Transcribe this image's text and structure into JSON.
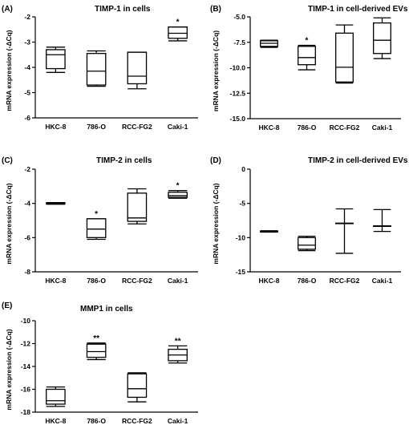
{
  "chart_data": [
    {
      "panel": "(A)",
      "type": "box",
      "title": "TIMP-1 in cells",
      "ylabel": "mRNA expression (-ΔCq)",
      "xlabel": "",
      "categories": [
        "HKC-8",
        "786-O",
        "RCC-FG2",
        "Caki-1"
      ],
      "ylim": [
        -6,
        -2
      ],
      "yticks": [
        -6,
        -5,
        -4,
        -3,
        -2
      ],
      "ytick_labels": [
        "-6",
        "-5",
        "-4",
        "-3",
        "-2"
      ],
      "boxes": [
        {
          "min": -4.2,
          "q1": -4.05,
          "median": -3.5,
          "q3": -3.3,
          "max": -3.2
        },
        {
          "min": -4.75,
          "q1": -4.7,
          "median": -4.15,
          "q3": -3.45,
          "max": -3.35
        },
        {
          "min": -4.85,
          "q1": -4.65,
          "median": -4.35,
          "q3": -3.4,
          "max": -3.4
        },
        {
          "min": -2.95,
          "q1": -2.85,
          "median": -2.65,
          "q3": -2.4,
          "max": -2.4
        }
      ],
      "significance": [
        "",
        "",
        "",
        "*"
      ]
    },
    {
      "panel": "(B)",
      "type": "box",
      "title": "TIMP-1 in cell-derived EVs",
      "ylabel": "mRNA expression (-ΔCq)",
      "xlabel": "",
      "categories": [
        "HKC-8",
        "786-O",
        "RCC-FG2",
        "Caki-1"
      ],
      "ylim": [
        -15,
        -5
      ],
      "yticks": [
        -15,
        -12.5,
        -10,
        -7.5,
        -5
      ],
      "ytick_labels": [
        "-15.0",
        "-12.5",
        "-10.0",
        "-7.5",
        "-5.0"
      ],
      "boxes": [
        {
          "min": -8.0,
          "q1": -7.9,
          "median": -7.6,
          "q3": -7.35,
          "max": -7.3
        },
        {
          "min": -10.2,
          "q1": -9.7,
          "median": -9.0,
          "q3": -7.9,
          "max": -7.8
        },
        {
          "min": -11.5,
          "q1": -11.4,
          "median": -9.95,
          "q3": -6.6,
          "max": -5.8
        },
        {
          "min": -9.1,
          "q1": -8.6,
          "median": -7.3,
          "q3": -5.6,
          "max": -5.1
        }
      ],
      "significance": [
        "",
        "*",
        "",
        ""
      ]
    },
    {
      "panel": "(C)",
      "type": "box",
      "title": "TIMP-2 in cells",
      "ylabel": "mRNA expression (-ΔCq)",
      "xlabel": "",
      "categories": [
        "HKC-8",
        "786-O",
        "RCC-FG2",
        "Caki-1"
      ],
      "ylim": [
        -8,
        -2
      ],
      "yticks": [
        -8,
        -6,
        -4,
        -2
      ],
      "ytick_labels": [
        "-8",
        "-6",
        "-4",
        "-2"
      ],
      "boxes": [
        {
          "min": -4.05,
          "q1": -4.02,
          "median": -4.0,
          "q3": -3.97,
          "max": -3.95
        },
        {
          "min": -6.1,
          "q1": -6.0,
          "median": -5.5,
          "q3": -4.9,
          "max": -4.9
        },
        {
          "min": -5.2,
          "q1": -5.05,
          "median": -4.85,
          "q3": -3.4,
          "max": -3.15
        },
        {
          "min": -3.7,
          "q1": -3.65,
          "median": -3.55,
          "q3": -3.35,
          "max": -3.25
        }
      ],
      "significance": [
        "",
        "*",
        "",
        "*"
      ]
    },
    {
      "panel": "(D)",
      "type": "box",
      "title": "TIMP-2 in cell-derived EVs",
      "ylabel": "mRNA expression (-ΔCq)",
      "xlabel": "",
      "categories": [
        "HKC-8",
        "786-O",
        "RCC-FG2",
        "Caki-1"
      ],
      "ylim": [
        -15,
        0
      ],
      "yticks": [
        -15,
        -10,
        -5,
        0
      ],
      "ytick_labels": [
        "-15",
        "-10",
        "-5",
        "0"
      ],
      "boxes": [
        {
          "min": -9.2,
          "q1": -9.15,
          "median": -9.1,
          "q3": -9.05,
          "max": -9.0
        },
        {
          "min": -11.9,
          "q1": -11.7,
          "median": -11.1,
          "q3": -10.0,
          "max": -9.8
        },
        {
          "min": -12.3,
          "q1": -7.9,
          "median": -7.9,
          "q3": -7.9,
          "max": -5.8
        },
        {
          "min": -9.1,
          "q1": -8.3,
          "median": -8.3,
          "q3": -8.3,
          "max": -5.9
        }
      ],
      "significance": [
        "",
        "",
        "",
        ""
      ]
    },
    {
      "panel": "(E)",
      "type": "box",
      "title": "MMP1 in cells",
      "ylabel": "mRNA expression (-ΔCq)",
      "xlabel": "",
      "categories": [
        "HKC-8",
        "786-O",
        "RCC-FG2",
        "Caki-1"
      ],
      "ylim": [
        -18,
        -10
      ],
      "yticks": [
        -18,
        -16,
        -14,
        -12,
        -10
      ],
      "ytick_labels": [
        "-18",
        "-16",
        "-14",
        "-12",
        "-10"
      ],
      "boxes": [
        {
          "min": -17.5,
          "q1": -17.3,
          "median": -17.0,
          "q3": -16.0,
          "max": -15.8
        },
        {
          "min": -13.4,
          "q1": -13.2,
          "median": -12.7,
          "q3": -12.05,
          "max": -11.95
        },
        {
          "min": -17.1,
          "q1": -16.7,
          "median": -15.95,
          "q3": -14.65,
          "max": -14.55
        },
        {
          "min": -13.7,
          "q1": -13.5,
          "median": -13.0,
          "q3": -12.5,
          "max": -12.2
        }
      ],
      "significance": [
        "",
        "**",
        "",
        "**"
      ]
    }
  ]
}
